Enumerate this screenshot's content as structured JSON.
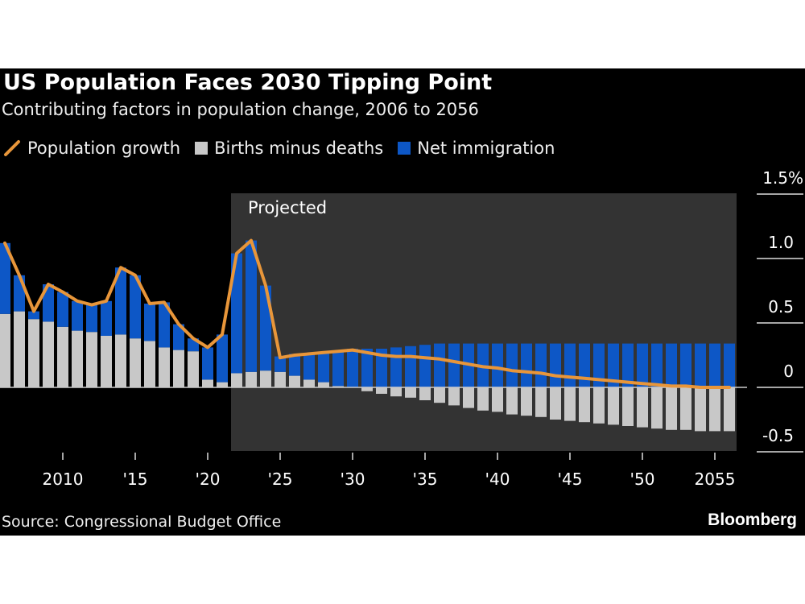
{
  "header": {
    "title": "US Population Faces 2030 Tipping Point",
    "subtitle": "Contributing factors in population change, 2006 to 2056"
  },
  "legend": [
    {
      "label": "Population growth",
      "color": "#e8963a",
      "shape": "line"
    },
    {
      "label": "Births minus deaths",
      "color": "#c8c8c8",
      "shape": "square"
    },
    {
      "label": "Net immigration",
      "color": "#0d57c6",
      "shape": "square"
    }
  ],
  "footer": {
    "source": "Source: Congressional Budget Office",
    "logo": "Bloomberg"
  },
  "chart_data": {
    "type": "bar",
    "stacked": true,
    "years": [
      2006,
      2007,
      2008,
      2009,
      2010,
      2011,
      2012,
      2013,
      2014,
      2015,
      2016,
      2017,
      2018,
      2019,
      2020,
      2021,
      2022,
      2023,
      2024,
      2025,
      2026,
      2027,
      2028,
      2029,
      2030,
      2031,
      2032,
      2033,
      2034,
      2035,
      2036,
      2037,
      2038,
      2039,
      2040,
      2041,
      2042,
      2043,
      2044,
      2045,
      2046,
      2047,
      2048,
      2049,
      2050,
      2051,
      2052,
      2053,
      2054,
      2055,
      2056
    ],
    "series": [
      {
        "name": "Births minus deaths",
        "values": [
          0.57,
          0.59,
          0.53,
          0.51,
          0.47,
          0.44,
          0.43,
          0.4,
          0.41,
          0.38,
          0.36,
          0.31,
          0.29,
          0.28,
          0.06,
          0.04,
          0.11,
          0.12,
          0.13,
          0.12,
          0.09,
          0.06,
          0.04,
          0.01,
          0.0,
          -0.03,
          -0.05,
          -0.07,
          -0.08,
          -0.1,
          -0.12,
          -0.14,
          -0.16,
          -0.18,
          -0.19,
          -0.21,
          -0.22,
          -0.23,
          -0.25,
          -0.26,
          -0.27,
          -0.28,
          -0.29,
          -0.3,
          -0.31,
          -0.32,
          -0.33,
          -0.33,
          -0.34,
          -0.34,
          -0.34
        ]
      },
      {
        "name": "Net immigration",
        "values": [
          0.55,
          0.28,
          0.06,
          0.29,
          0.27,
          0.23,
          0.21,
          0.27,
          0.52,
          0.49,
          0.29,
          0.35,
          0.2,
          0.1,
          0.25,
          0.37,
          0.93,
          1.02,
          0.66,
          0.12,
          0.17,
          0.2,
          0.23,
          0.27,
          0.3,
          0.3,
          0.3,
          0.31,
          0.32,
          0.33,
          0.34,
          0.34,
          0.34,
          0.34,
          0.34,
          0.34,
          0.34,
          0.34,
          0.34,
          0.34,
          0.34,
          0.34,
          0.34,
          0.34,
          0.34,
          0.34,
          0.34,
          0.34,
          0.34,
          0.34,
          0.34
        ]
      },
      {
        "name": "Population growth",
        "type": "line",
        "values": [
          1.12,
          0.87,
          0.59,
          0.8,
          0.74,
          0.67,
          0.64,
          0.67,
          0.93,
          0.87,
          0.65,
          0.66,
          0.49,
          0.38,
          0.31,
          0.41,
          1.04,
          1.14,
          0.79,
          0.23,
          0.25,
          0.26,
          0.27,
          0.28,
          0.29,
          0.27,
          0.25,
          0.24,
          0.24,
          0.23,
          0.22,
          0.2,
          0.18,
          0.16,
          0.15,
          0.13,
          0.12,
          0.11,
          0.09,
          0.08,
          0.07,
          0.06,
          0.05,
          0.04,
          0.03,
          0.02,
          0.01,
          0.01,
          0.0,
          0.0,
          0.0
        ]
      }
    ],
    "annotation": {
      "label": "Projected",
      "from_year": 2022,
      "to_year": 2056
    },
    "x_ticks": [
      2010,
      2015,
      2020,
      2025,
      2030,
      2035,
      2040,
      2045,
      2050,
      2055
    ],
    "x_tick_labels": [
      "2010",
      "'15",
      "'20",
      "'25",
      "'30",
      "'35",
      "'40",
      "'45",
      "'50",
      "2055"
    ],
    "y_ticks": [
      -0.5,
      0,
      0.5,
      1.0,
      1.5
    ],
    "y_tick_labels": [
      "-0.5",
      "0",
      "0.5",
      "1.0",
      "1.5%"
    ],
    "ylim": [
      -0.5,
      1.5
    ],
    "y_axis_side": "right",
    "legend_placement": "top-left",
    "grid": false
  }
}
